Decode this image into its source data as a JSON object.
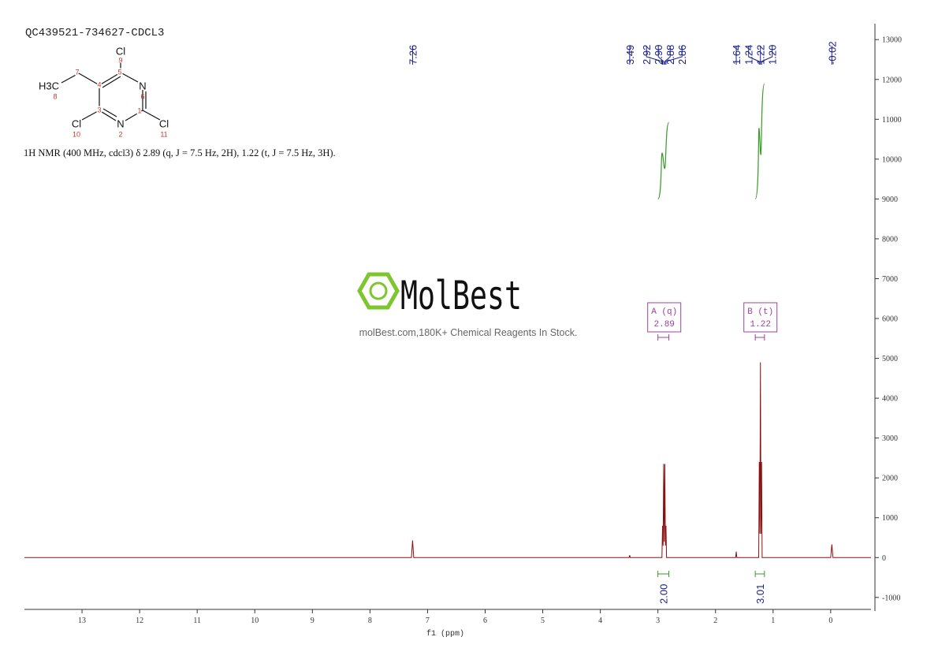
{
  "chart_data": {
    "type": "line",
    "title": "QC439521-734627-CDCL3",
    "subtitle": "1H NMR (400 MHz, cdcl3) δ 2.89 (q, J = 7.5 Hz, 2H), 1.22 (t, J = 7.5 Hz, 3H).",
    "xlabel": "f1 (ppm)",
    "xlim": [
      14.0,
      -0.7
    ],
    "ylim": [
      -1340,
      13400
    ],
    "xticks": [
      13,
      12,
      11,
      10,
      9,
      8,
      7,
      6,
      5,
      4,
      3,
      2,
      1,
      0
    ],
    "yticks": [
      -1000,
      0,
      1000,
      2000,
      3000,
      4000,
      5000,
      6000,
      7000,
      8000,
      9000,
      10000,
      11000,
      12000,
      13000
    ],
    "color": "#8b1010",
    "x": [
      14.0,
      7.28,
      7.26,
      7.24,
      3.5,
      3.49,
      3.48,
      2.93,
      2.92,
      2.91,
      2.9,
      2.89,
      2.88,
      2.87,
      2.86,
      2.85,
      1.65,
      1.64,
      1.63,
      1.25,
      1.24,
      1.23,
      1.22,
      1.21,
      1.2,
      1.19,
      0.0,
      -0.02,
      -0.04,
      -0.7
    ],
    "values": [
      0,
      0,
      430,
      0,
      0,
      60,
      0,
      0,
      800,
      300,
      2350,
      400,
      2350,
      300,
      800,
      0,
      0,
      150,
      0,
      0,
      2400,
      600,
      4900,
      600,
      2400,
      0,
      0,
      330,
      0,
      0
    ],
    "peaks": [
      {
        "value": 7.26,
        "label": "7.26"
      },
      {
        "value": 3.49,
        "label": "3.49"
      },
      {
        "value": 2.92,
        "label": "2.92"
      },
      {
        "value": 2.9,
        "label": "2.90"
      },
      {
        "value": 2.88,
        "label": "2.88"
      },
      {
        "value": 2.86,
        "label": "2.86"
      },
      {
        "value": 1.64,
        "label": "1.64"
      },
      {
        "value": 1.24,
        "label": "1.24"
      },
      {
        "value": 1.22,
        "label": "1.22"
      },
      {
        "value": 1.2,
        "label": "1.20"
      },
      {
        "value": -0.02,
        "label": "-0.02"
      }
    ],
    "integrals": [
      {
        "range": [
          3.0,
          2.81
        ],
        "value": 2,
        "label": "2.00"
      },
      {
        "range": [
          1.31,
          1.15
        ],
        "value": 3.01,
        "label": "3.01"
      }
    ],
    "multiplets": [
      {
        "name": "A (q)",
        "shift": 2.89,
        "range": [
          3.0,
          2.81
        ]
      },
      {
        "name": "B (t)",
        "shift": 1.22,
        "range": [
          1.31,
          1.15
        ]
      }
    ]
  },
  "structure": {
    "atoms": [
      {
        "symbol": "Cl",
        "number": 9
      },
      {
        "symbol": "N",
        "number": 6
      },
      {
        "symbol": "N",
        "number": 2
      },
      {
        "symbol": "Cl",
        "number": 10
      },
      {
        "symbol": "Cl",
        "number": 11
      },
      {
        "symbol": "H3C",
        "number": 8
      }
    ],
    "locants": [
      5,
      1,
      3,
      4,
      7
    ]
  },
  "watermark": {
    "brand": "MolBest",
    "tagline": "molBest.com,180K+ Chemical Reagents In Stock."
  }
}
